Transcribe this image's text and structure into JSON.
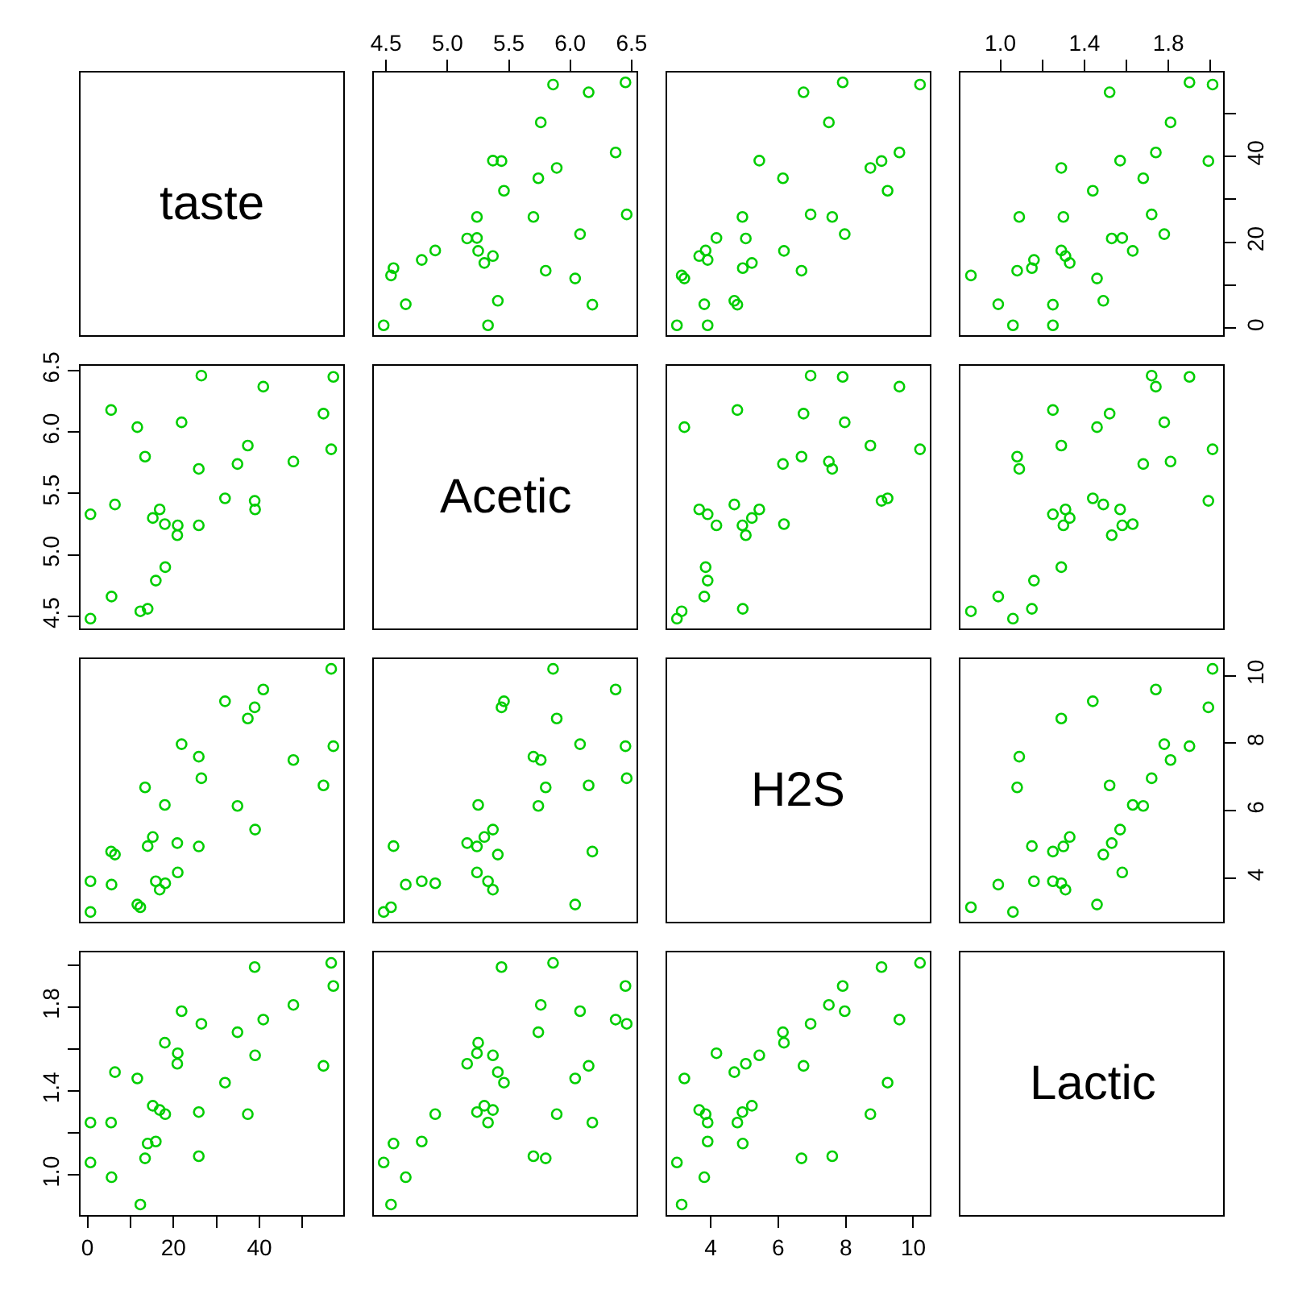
{
  "chart_data": [
    {
      "type": "other",
      "title": "taste"
    },
    {
      "type": "scatter",
      "marker": "circle",
      "tick_labels": "x",
      "xlim": [
        4.4,
        6.54
      ],
      "xticks": [
        4.5,
        {
          "value": 5,
          "label": "5.0"
        },
        5.5,
        {
          "value": 6,
          "label": "6.0"
        },
        6.5
      ],
      "ylim": [
        -1.6,
        59.5
      ],
      "x": [
        4.54,
        5.16,
        5.37,
        5.76,
        4.66,
        5.7,
        5.89,
        6.08,
        4.9,
        5.24,
        5.74,
        6.45,
        4.48,
        5.24,
        6.15,
        6.37,
        4.79,
        5.41,
        5.25,
        5.44,
        4.56,
        5.3,
        5.46,
        5.86,
        5.37,
        6.04,
        6.46,
        5.33,
        5.8,
        6.18
      ],
      "series": [
        {
          "color": "#00cd00",
          "values": [
            12.3,
            20.9,
            39.0,
            47.9,
            5.6,
            25.9,
            37.3,
            21.9,
            18.1,
            21.0,
            34.9,
            57.2,
            0.7,
            25.9,
            54.9,
            40.9,
            15.9,
            6.4,
            18.0,
            38.9,
            14.0,
            15.2,
            32.0,
            56.7,
            16.8,
            11.6,
            26.5,
            0.7,
            13.4,
            5.5
          ]
        }
      ]
    },
    {
      "type": "scatter",
      "marker": "circle",
      "tick_labels": false,
      "xlim": [
        2.71,
        10.49
      ],
      "ylim": [
        -1.6,
        59.5
      ],
      "x": [
        3.14,
        5.04,
        5.44,
        7.5,
        3.81,
        7.6,
        8.73,
        7.97,
        3.85,
        4.17,
        6.14,
        7.91,
        3.0,
        4.94,
        6.75,
        9.59,
        3.91,
        4.7,
        6.17,
        9.06,
        4.95,
        5.22,
        9.24,
        10.2,
        3.66,
        3.22,
        6.96,
        3.91,
        6.69,
        4.79
      ],
      "series": [
        {
          "color": "#00cd00",
          "values": [
            12.3,
            20.9,
            39.0,
            47.9,
            5.6,
            25.9,
            37.3,
            21.9,
            18.1,
            21.0,
            34.9,
            57.2,
            0.7,
            25.9,
            54.9,
            40.9,
            15.9,
            6.4,
            18.0,
            38.9,
            14.0,
            15.2,
            32.0,
            56.7,
            16.8,
            11.6,
            26.5,
            0.7,
            13.4,
            5.5
          ]
        }
      ]
    },
    {
      "type": "scatter",
      "marker": "circle",
      "xlim": [
        0.81,
        2.06
      ],
      "xticks": [
        {
          "value": 1,
          "label": "1.0"
        },
        {
          "value": 1.2,
          "label": null
        },
        1.4,
        {
          "value": 1.6,
          "label": null
        },
        1.8,
        {
          "value": 2,
          "label": null
        }
      ],
      "ylim": [
        -1.6,
        59.5
      ],
      "yticks": [
        0,
        {
          "value": 10,
          "label": null
        },
        20,
        {
          "value": 30,
          "label": null
        },
        40,
        {
          "value": 50,
          "label": null
        }
      ],
      "x": [
        0.86,
        1.53,
        1.57,
        1.81,
        0.99,
        1.09,
        1.29,
        1.78,
        1.29,
        1.58,
        1.68,
        1.9,
        1.06,
        1.3,
        1.52,
        1.74,
        1.16,
        1.49,
        1.63,
        1.99,
        1.15,
        1.33,
        1.44,
        2.01,
        1.31,
        1.46,
        1.72,
        1.25,
        1.08,
        1.25
      ],
      "series": [
        {
          "color": "#00cd00",
          "values": [
            12.3,
            20.9,
            39.0,
            47.9,
            5.6,
            25.9,
            37.3,
            21.9,
            18.1,
            21.0,
            34.9,
            57.2,
            0.7,
            25.9,
            54.9,
            40.9,
            15.9,
            6.4,
            18.0,
            38.9,
            14.0,
            15.2,
            32.0,
            56.7,
            16.8,
            11.6,
            26.5,
            0.7,
            13.4,
            5.5
          ]
        }
      ]
    },
    {
      "type": "scatter",
      "marker": "circle",
      "tick_labels": "y",
      "xlim": [
        -1.6,
        59.5
      ],
      "ylim": [
        4.4,
        6.54
      ],
      "yticks": [
        4.5,
        {
          "value": 5,
          "label": "5.0"
        },
        5.5,
        {
          "value": 6,
          "label": "6.0"
        },
        6.5
      ],
      "x": [
        12.3,
        20.9,
        39.0,
        47.9,
        5.6,
        25.9,
        37.3,
        21.9,
        18.1,
        21.0,
        34.9,
        57.2,
        0.7,
        25.9,
        54.9,
        40.9,
        15.9,
        6.4,
        18.0,
        38.9,
        14.0,
        15.2,
        32.0,
        56.7,
        16.8,
        11.6,
        26.5,
        0.7,
        13.4,
        5.5
      ],
      "series": [
        {
          "color": "#00cd00",
          "values": [
            4.54,
            5.16,
            5.37,
            5.76,
            4.66,
            5.7,
            5.89,
            6.08,
            4.9,
            5.24,
            5.74,
            6.45,
            4.48,
            5.24,
            6.15,
            6.37,
            4.79,
            5.41,
            5.25,
            5.44,
            4.56,
            5.3,
            5.46,
            5.86,
            5.37,
            6.04,
            6.46,
            5.33,
            5.8,
            6.18
          ]
        }
      ]
    },
    {
      "type": "other",
      "title": "Acetic"
    },
    {
      "type": "scatter",
      "marker": "circle",
      "tick_labels": false,
      "xlim": [
        2.71,
        10.49
      ],
      "ylim": [
        4.4,
        6.54
      ],
      "x": [
        3.14,
        5.04,
        5.44,
        7.5,
        3.81,
        7.6,
        8.73,
        7.97,
        3.85,
        4.17,
        6.14,
        7.91,
        3.0,
        4.94,
        6.75,
        9.59,
        3.91,
        4.7,
        6.17,
        9.06,
        4.95,
        5.22,
        9.24,
        10.2,
        3.66,
        3.22,
        6.96,
        3.91,
        6.69,
        4.79
      ],
      "series": [
        {
          "color": "#00cd00",
          "values": [
            4.54,
            5.16,
            5.37,
            5.76,
            4.66,
            5.7,
            5.89,
            6.08,
            4.9,
            5.24,
            5.74,
            6.45,
            4.48,
            5.24,
            6.15,
            6.37,
            4.79,
            5.41,
            5.25,
            5.44,
            4.56,
            5.3,
            5.46,
            5.86,
            5.37,
            6.04,
            6.46,
            5.33,
            5.8,
            6.18
          ]
        }
      ]
    },
    {
      "type": "scatter",
      "marker": "circle",
      "tick_labels": false,
      "xlim": [
        0.81,
        2.06
      ],
      "ylim": [
        4.4,
        6.54
      ],
      "x": [
        0.86,
        1.53,
        1.57,
        1.81,
        0.99,
        1.09,
        1.29,
        1.78,
        1.29,
        1.58,
        1.68,
        1.9,
        1.06,
        1.3,
        1.52,
        1.74,
        1.16,
        1.49,
        1.63,
        1.99,
        1.15,
        1.33,
        1.44,
        2.01,
        1.31,
        1.46,
        1.72,
        1.25,
        1.08,
        1.25
      ],
      "series": [
        {
          "color": "#00cd00",
          "values": [
            4.54,
            5.16,
            5.37,
            5.76,
            4.66,
            5.7,
            5.89,
            6.08,
            4.9,
            5.24,
            5.74,
            6.45,
            4.48,
            5.24,
            6.15,
            6.37,
            4.79,
            5.41,
            5.25,
            5.44,
            4.56,
            5.3,
            5.46,
            5.86,
            5.37,
            6.04,
            6.46,
            5.33,
            5.8,
            6.18
          ]
        }
      ]
    },
    {
      "type": "scatter",
      "marker": "circle",
      "tick_labels": false,
      "xlim": [
        -1.6,
        59.5
      ],
      "ylim": [
        2.71,
        10.49
      ],
      "x": [
        12.3,
        20.9,
        39.0,
        47.9,
        5.6,
        25.9,
        37.3,
        21.9,
        18.1,
        21.0,
        34.9,
        57.2,
        0.7,
        25.9,
        54.9,
        40.9,
        15.9,
        6.4,
        18.0,
        38.9,
        14.0,
        15.2,
        32.0,
        56.7,
        16.8,
        11.6,
        26.5,
        0.7,
        13.4,
        5.5
      ],
      "series": [
        {
          "color": "#00cd00",
          "values": [
            3.14,
            5.04,
            5.44,
            7.5,
            3.81,
            7.6,
            8.73,
            7.97,
            3.85,
            4.17,
            6.14,
            7.91,
            3.0,
            4.94,
            6.75,
            9.59,
            3.91,
            4.7,
            6.17,
            9.06,
            4.95,
            5.22,
            9.24,
            10.2,
            3.66,
            3.22,
            6.96,
            3.91,
            6.69,
            4.79
          ]
        }
      ]
    },
    {
      "type": "scatter",
      "marker": "circle",
      "tick_labels": false,
      "xlim": [
        4.4,
        6.54
      ],
      "ylim": [
        2.71,
        10.49
      ],
      "x": [
        4.54,
        5.16,
        5.37,
        5.76,
        4.66,
        5.7,
        5.89,
        6.08,
        4.9,
        5.24,
        5.74,
        6.45,
        4.48,
        5.24,
        6.15,
        6.37,
        4.79,
        5.41,
        5.25,
        5.44,
        4.56,
        5.3,
        5.46,
        5.86,
        5.37,
        6.04,
        6.46,
        5.33,
        5.8,
        6.18
      ],
      "series": [
        {
          "color": "#00cd00",
          "values": [
            3.14,
            5.04,
            5.44,
            7.5,
            3.81,
            7.6,
            8.73,
            7.97,
            3.85,
            4.17,
            6.14,
            7.91,
            3.0,
            4.94,
            6.75,
            9.59,
            3.91,
            4.7,
            6.17,
            9.06,
            4.95,
            5.22,
            9.24,
            10.2,
            3.66,
            3.22,
            6.96,
            3.91,
            6.69,
            4.79
          ]
        }
      ]
    },
    {
      "type": "other",
      "title": "H2S"
    },
    {
      "type": "scatter",
      "marker": "circle",
      "tick_labels": "y",
      "xlim": [
        0.81,
        2.06
      ],
      "ylim": [
        2.71,
        10.49
      ],
      "yticks": [
        4,
        6,
        8,
        10
      ],
      "x": [
        0.86,
        1.53,
        1.57,
        1.81,
        0.99,
        1.09,
        1.29,
        1.78,
        1.29,
        1.58,
        1.68,
        1.9,
        1.06,
        1.3,
        1.52,
        1.74,
        1.16,
        1.49,
        1.63,
        1.99,
        1.15,
        1.33,
        1.44,
        2.01,
        1.31,
        1.46,
        1.72,
        1.25,
        1.08,
        1.25
      ],
      "series": [
        {
          "color": "#00cd00",
          "values": [
            3.14,
            5.04,
            5.44,
            7.5,
            3.81,
            7.6,
            8.73,
            7.97,
            3.85,
            4.17,
            6.14,
            7.91,
            3.0,
            4.94,
            6.75,
            9.59,
            3.91,
            4.7,
            6.17,
            9.06,
            4.95,
            5.22,
            9.24,
            10.2,
            3.66,
            3.22,
            6.96,
            3.91,
            6.69,
            4.79
          ]
        }
      ]
    },
    {
      "type": "scatter",
      "marker": "circle",
      "xlim": [
        -1.6,
        59.5
      ],
      "xticks": [
        0,
        {
          "value": 10,
          "label": null
        },
        20,
        {
          "value": 30,
          "label": null
        },
        40,
        {
          "value": 50,
          "label": null
        }
      ],
      "ylim": [
        0.81,
        2.06
      ],
      "yticks": [
        {
          "value": 1,
          "label": "1.0"
        },
        {
          "value": 1.2,
          "label": null
        },
        1.4,
        {
          "value": 1.6,
          "label": null
        },
        1.8,
        {
          "value": 2,
          "label": null
        }
      ],
      "x": [
        12.3,
        20.9,
        39.0,
        47.9,
        5.6,
        25.9,
        37.3,
        21.9,
        18.1,
        21.0,
        34.9,
        57.2,
        0.7,
        25.9,
        54.9,
        40.9,
        15.9,
        6.4,
        18.0,
        38.9,
        14.0,
        15.2,
        32.0,
        56.7,
        16.8,
        11.6,
        26.5,
        0.7,
        13.4,
        5.5
      ],
      "series": [
        {
          "color": "#00cd00",
          "values": [
            0.86,
            1.53,
            1.57,
            1.81,
            0.99,
            1.09,
            1.29,
            1.78,
            1.29,
            1.58,
            1.68,
            1.9,
            1.06,
            1.3,
            1.52,
            1.74,
            1.16,
            1.49,
            1.63,
            1.99,
            1.15,
            1.33,
            1.44,
            2.01,
            1.31,
            1.46,
            1.72,
            1.25,
            1.08,
            1.25
          ]
        }
      ]
    },
    {
      "type": "scatter",
      "marker": "circle",
      "tick_labels": false,
      "xlim": [
        4.4,
        6.54
      ],
      "ylim": [
        0.81,
        2.06
      ],
      "x": [
        4.54,
        5.16,
        5.37,
        5.76,
        4.66,
        5.7,
        5.89,
        6.08,
        4.9,
        5.24,
        5.74,
        6.45,
        4.48,
        5.24,
        6.15,
        6.37,
        4.79,
        5.41,
        5.25,
        5.44,
        4.56,
        5.3,
        5.46,
        5.86,
        5.37,
        6.04,
        6.46,
        5.33,
        5.8,
        6.18
      ],
      "series": [
        {
          "color": "#00cd00",
          "values": [
            0.86,
            1.53,
            1.57,
            1.81,
            0.99,
            1.09,
            1.29,
            1.78,
            1.29,
            1.58,
            1.68,
            1.9,
            1.06,
            1.3,
            1.52,
            1.74,
            1.16,
            1.49,
            1.63,
            1.99,
            1.15,
            1.33,
            1.44,
            2.01,
            1.31,
            1.46,
            1.72,
            1.25,
            1.08,
            1.25
          ]
        }
      ]
    },
    {
      "type": "scatter",
      "marker": "circle",
      "tick_labels": "x",
      "xlim": [
        2.71,
        10.49
      ],
      "xticks": [
        4,
        6,
        8,
        10
      ],
      "ylim": [
        0.81,
        2.06
      ],
      "x": [
        3.14,
        5.04,
        5.44,
        7.5,
        3.81,
        7.6,
        8.73,
        7.97,
        3.85,
        4.17,
        6.14,
        7.91,
        3.0,
        4.94,
        6.75,
        9.59,
        3.91,
        4.7,
        6.17,
        9.06,
        4.95,
        5.22,
        9.24,
        10.2,
        3.66,
        3.22,
        6.96,
        3.91,
        6.69,
        4.79
      ],
      "series": [
        {
          "color": "#00cd00",
          "values": [
            0.86,
            1.53,
            1.57,
            1.81,
            0.99,
            1.09,
            1.29,
            1.78,
            1.29,
            1.58,
            1.68,
            1.9,
            1.06,
            1.3,
            1.52,
            1.74,
            1.16,
            1.49,
            1.63,
            1.99,
            1.15,
            1.33,
            1.44,
            2.01,
            1.31,
            1.46,
            1.72,
            1.25,
            1.08,
            1.25
          ]
        }
      ]
    },
    {
      "type": "other",
      "title": "Lactic"
    }
  ]
}
